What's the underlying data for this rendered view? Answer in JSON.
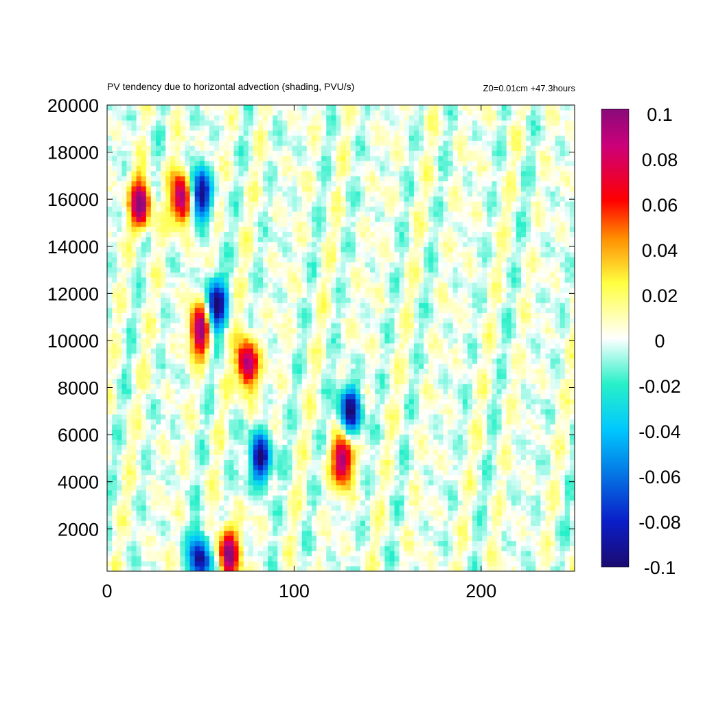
{
  "chart_data": {
    "type": "heatmap",
    "title": "PV tendency due to horizontal advection (shading, PVU/s)",
    "subtitle": "Z0=0.01cm   +47.3hours",
    "xlabel": "",
    "ylabel": "",
    "xlim": [
      0,
      250
    ],
    "ylim": [
      200,
      20000
    ],
    "x_ticks": [
      0,
      100,
      200
    ],
    "x_tick_labels": [
      "0",
      "100",
      "200"
    ],
    "y_ticks": [
      2000,
      4000,
      6000,
      8000,
      10000,
      12000,
      14000,
      16000,
      18000,
      20000
    ],
    "y_tick_labels": [
      "2000",
      "4000",
      "6000",
      "8000",
      "10000",
      "12000",
      "14000",
      "16000",
      "18000",
      "20000"
    ],
    "colorbar": {
      "range": [
        -0.1,
        0.1
      ],
      "ticks": [
        0.1,
        0.08,
        0.06,
        0.04,
        0.02,
        0,
        -0.02,
        -0.04,
        -0.06,
        -0.08,
        -0.1
      ],
      "tick_labels": [
        "0.1",
        "0.08",
        "0.06",
        "0.04",
        "0.02",
        "0",
        "-0.02",
        "-0.04",
        "-0.06",
        "-0.08",
        "-0.1"
      ],
      "colors": [
        "#1c0a70",
        "#0a1ec8",
        "#00c8ff",
        "#28f0c8",
        "#ffffff",
        "#ffff40",
        "#ff8c00",
        "#ff0000",
        "#cc007a",
        "#8a0a7a"
      ]
    },
    "grid": false,
    "notable_features": [
      {
        "x": 18,
        "y": 15800,
        "value": 0.1
      },
      {
        "x": 40,
        "y": 16000,
        "value": 0.1
      },
      {
        "x": 50,
        "y": 16200,
        "value": -0.1
      },
      {
        "x": 58,
        "y": 11500,
        "value": -0.1
      },
      {
        "x": 50,
        "y": 10500,
        "value": 0.1
      },
      {
        "x": 75,
        "y": 9000,
        "value": 0.1
      },
      {
        "x": 82,
        "y": 5000,
        "value": -0.1
      },
      {
        "x": 126,
        "y": 5000,
        "value": 0.1
      },
      {
        "x": 130,
        "y": 7000,
        "value": -0.1
      },
      {
        "x": 50,
        "y": 700,
        "value": -0.1
      },
      {
        "x": 65,
        "y": 1000,
        "value": 0.1
      }
    ]
  }
}
